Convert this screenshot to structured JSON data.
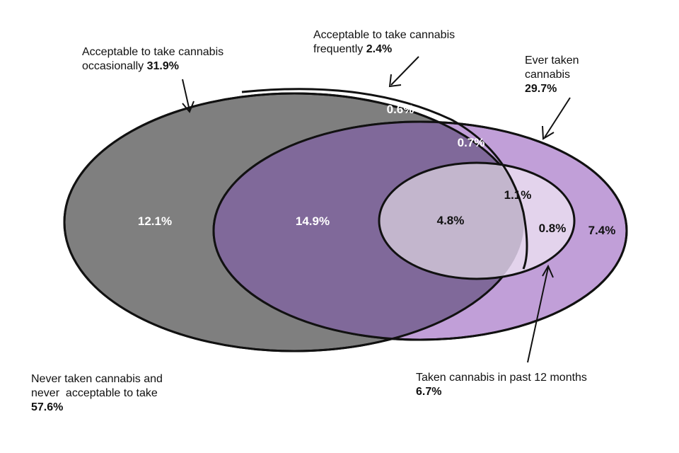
{
  "colors": {
    "occasional_fill": "#7f7f7f",
    "ever_fill": "#c19fd8",
    "overlap_fill": "#80699a",
    "past12_fill": "#e3d3ec",
    "past12_overlap_fill": "#c3b6cd",
    "outline": "#111111"
  },
  "labels": {
    "occasional": {
      "text": "Acceptable to take cannabis occasionally",
      "value": "31.9%"
    },
    "frequent": {
      "line1": "Acceptable to take cannabis",
      "line2": "frequently",
      "value": "2.4%"
    },
    "ever": {
      "line1": "Ever taken",
      "line2": "cannabis",
      "value": "29.7%"
    },
    "never": {
      "line1": "Never taken cannabis and",
      "line2": "never  acceptable to take",
      "value": "57.6%"
    },
    "past12": {
      "text": "Taken cannabis in past 12 months",
      "value": "6.7%"
    }
  },
  "regions": {
    "occasional_only": "12.1%",
    "occasional_and_ever": "14.9%",
    "frequent_only": "0.6%",
    "frequent_and_ever": "0.7%",
    "frequent_and_past12": "1.1%",
    "occasional_and_past12": "4.8%",
    "past12_only": "0.8%",
    "ever_only": "7.4%"
  }
}
